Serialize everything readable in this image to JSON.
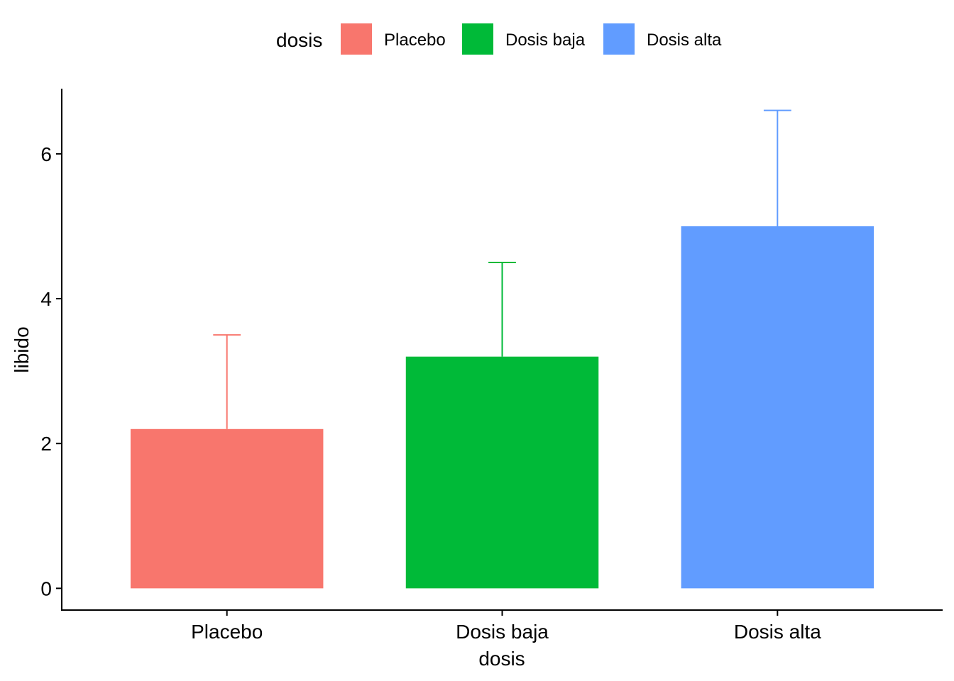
{
  "chart_data": {
    "type": "bar",
    "categories": [
      "Placebo",
      "Dosis baja",
      "Dosis alta"
    ],
    "values": [
      2.2,
      3.2,
      5.0
    ],
    "error_upper": [
      3.5,
      4.5,
      6.6
    ],
    "colors": [
      "#F8766D",
      "#00BA38",
      "#619CFF"
    ],
    "xlabel": "dosis",
    "ylabel": "libido",
    "ylim": [
      -0.3,
      6.9
    ],
    "yticks": [
      0,
      2,
      4,
      6
    ],
    "ytick_labels": [
      "0",
      "2",
      "4",
      "6"
    ],
    "legend": {
      "title": "dosis",
      "position": "top",
      "entries": [
        "Placebo",
        "Dosis baja",
        "Dosis alta"
      ]
    },
    "grid": false
  }
}
